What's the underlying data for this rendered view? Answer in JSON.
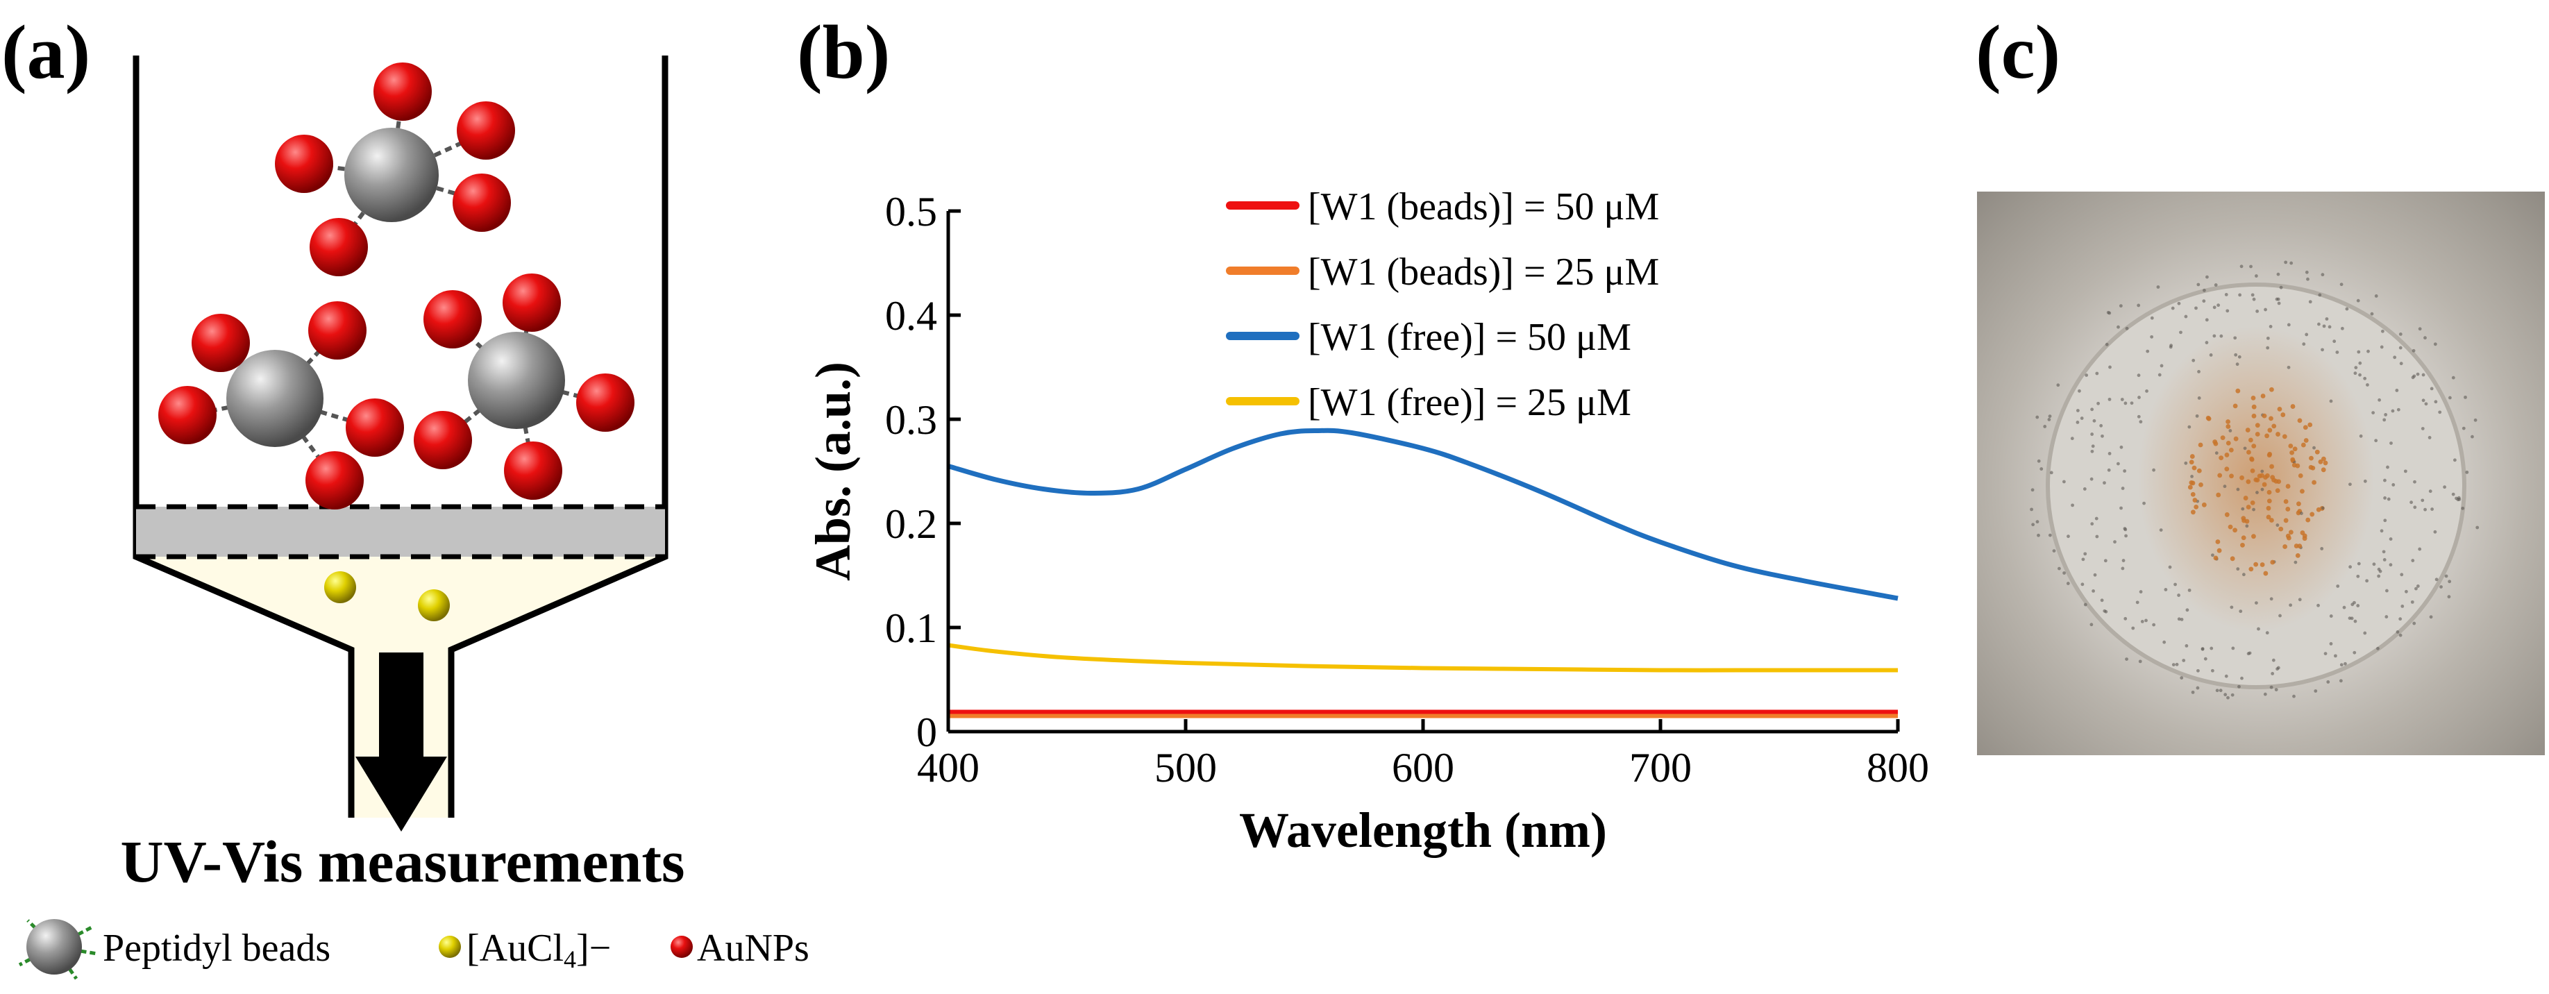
{
  "panel_labels": {
    "a": "(a)",
    "b": "(b)",
    "c": "(c)"
  },
  "schematic": {
    "caption": "UV-Vis measurements",
    "key": [
      {
        "label": "Peptidyl beads",
        "icon": "peptidyl-bead-icon",
        "color": "#8c8c8c"
      },
      {
        "label": "[AuCl",
        "subscript": "4",
        "superscript": "]−",
        "icon": "aucl4-icon",
        "color": "#e0d000"
      },
      {
        "label": "AuNPs",
        "icon": "aunp-icon",
        "color": "#e00000"
      }
    ]
  },
  "chart_data": {
    "type": "line",
    "title": "",
    "xlabel": "Wavelength (nm)",
    "ylabel": "Abs. (a.u.)",
    "xlim": [
      400,
      800
    ],
    "ylim": [
      0,
      0.5
    ],
    "xticks": [
      400,
      500,
      600,
      700,
      800
    ],
    "yticks": [
      0,
      0.1,
      0.2,
      0.3,
      0.4,
      0.5
    ],
    "ytick_labels": [
      "0",
      "0.1",
      "0.2",
      "0.3",
      "0.4",
      "0.5"
    ],
    "legend_position": "top-center",
    "series": [
      {
        "name": "[W1 (beads)] = 50 μM",
        "color": "#ee1111",
        "x": [
          400,
          500,
          600,
          700,
          800
        ],
        "y": [
          0.019,
          0.019,
          0.019,
          0.019,
          0.019
        ]
      },
      {
        "name": "[W1 (beads)] = 25 μM",
        "color": "#f07d2a",
        "x": [
          400,
          500,
          600,
          700,
          800
        ],
        "y": [
          0.015,
          0.015,
          0.015,
          0.015,
          0.015
        ]
      },
      {
        "name": "[W1 (free)] = 50 μM",
        "color": "#1f6fbf",
        "x": [
          400,
          420,
          440,
          460,
          480,
          500,
          520,
          540,
          555,
          570,
          600,
          620,
          650,
          680,
          700,
          730,
          760,
          800
        ],
        "y": [
          0.255,
          0.242,
          0.233,
          0.229,
          0.233,
          0.252,
          0.272,
          0.286,
          0.289,
          0.287,
          0.272,
          0.257,
          0.23,
          0.2,
          0.182,
          0.16,
          0.145,
          0.128
        ]
      },
      {
        "name": "[W1 (free)] = 25 μM",
        "color": "#f5c000",
        "x": [
          400,
          420,
          450,
          500,
          550,
          600,
          650,
          700,
          750,
          800
        ],
        "y": [
          0.083,
          0.077,
          0.071,
          0.066,
          0.063,
          0.061,
          0.06,
          0.059,
          0.059,
          0.059
        ]
      }
    ]
  },
  "photo": {
    "colors": {
      "rim": "#8c8880",
      "disc": "#d4d1cb",
      "particles": "#c8742a"
    }
  }
}
